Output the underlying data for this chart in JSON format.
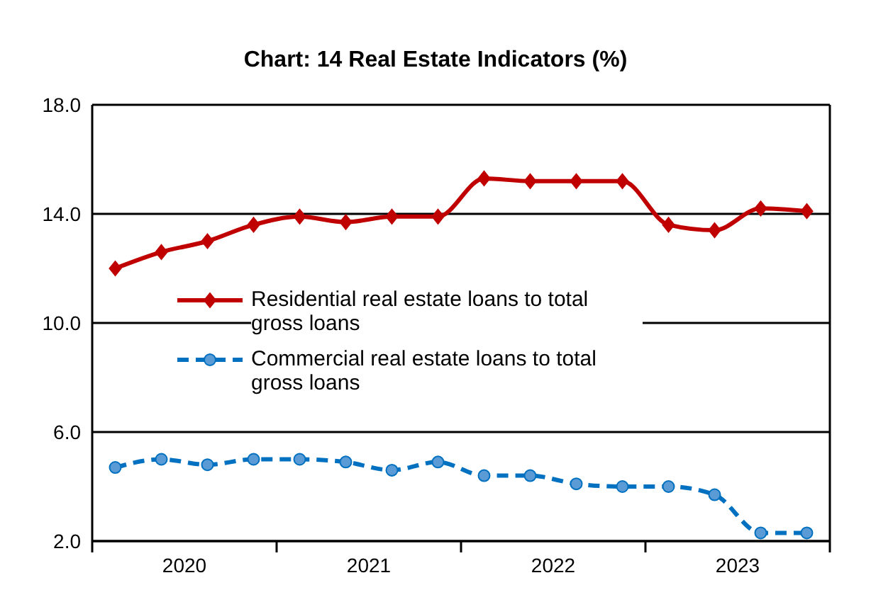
{
  "chart_data": {
    "type": "line",
    "title": "Chart: 14 Real Estate Indicators (%)",
    "x": [
      2020.125,
      2020.375,
      2020.625,
      2020.875,
      2021.125,
      2021.375,
      2021.625,
      2021.875,
      2022.125,
      2022.375,
      2022.625,
      2022.875,
      2023.125,
      2023.375,
      2023.625,
      2023.875
    ],
    "xlim": [
      2020,
      2024
    ],
    "xticks": [
      {
        "value": 2020,
        "label": null
      },
      {
        "value": 2020.5,
        "label": "2020"
      },
      {
        "value": 2021,
        "label": null
      },
      {
        "value": 2021.5,
        "label": "2021"
      },
      {
        "value": 2022,
        "label": null
      },
      {
        "value": 2022.5,
        "label": "2022"
      },
      {
        "value": 2023,
        "label": null
      },
      {
        "value": 2023.5,
        "label": "2023"
      },
      {
        "value": 2024,
        "label": null
      }
    ],
    "series": [
      {
        "name": "Residential real estate loans to total gross loans",
        "color": "#c00000",
        "marker": "diamond",
        "line_style": "solid",
        "values": [
          12.0,
          12.6,
          13.0,
          13.6,
          13.9,
          13.7,
          13.9,
          13.9,
          15.3,
          15.2,
          15.2,
          15.2,
          13.6,
          13.4,
          14.2,
          14.1
        ]
      },
      {
        "name": "Commercial real estate loans to total gross loans",
        "color": "#0070c0",
        "marker": "circle",
        "line_style": "dashed",
        "values": [
          4.7,
          5.0,
          4.8,
          5.0,
          5.0,
          4.9,
          4.6,
          4.9,
          4.4,
          4.4,
          4.1,
          4.0,
          4.0,
          3.7,
          2.3,
          2.3
        ]
      }
    ],
    "ylim": [
      2,
      18
    ],
    "yticks": [
      {
        "value": 2,
        "label": "2.0"
      },
      {
        "value": 6,
        "label": "6.0"
      },
      {
        "value": 10,
        "label": "10.0"
      },
      {
        "value": 14,
        "label": "14.0"
      },
      {
        "value": 18,
        "label": "18.0"
      }
    ],
    "grid": "y",
    "legend": "center"
  }
}
